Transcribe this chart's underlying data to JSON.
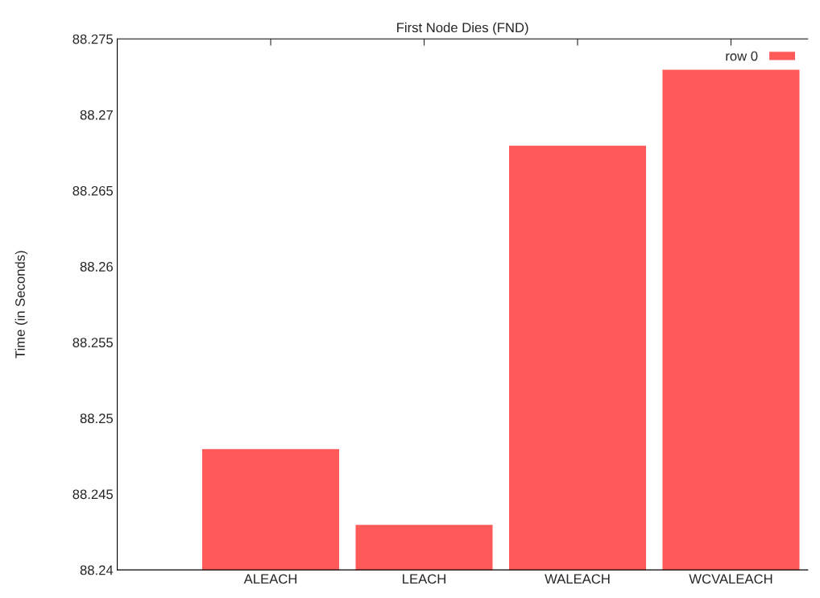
{
  "chart_data": {
    "type": "bar",
    "title": "First Node Dies (FND)",
    "ylabel": "Time (in Seconds)",
    "categories": [
      "ALEACH",
      "LEACH",
      "WALEACH",
      "WCVALEACH"
    ],
    "series": [
      {
        "name": "row 0",
        "color": "#ff5a5a",
        "values": [
          88.248,
          88.243,
          88.268,
          88.273
        ]
      }
    ],
    "ylim": [
      88.24,
      88.275
    ],
    "yticks": [
      88.24,
      88.245,
      88.25,
      88.255,
      88.26,
      88.265,
      88.27,
      88.275
    ],
    "legend": "top right",
    "grid": false
  }
}
